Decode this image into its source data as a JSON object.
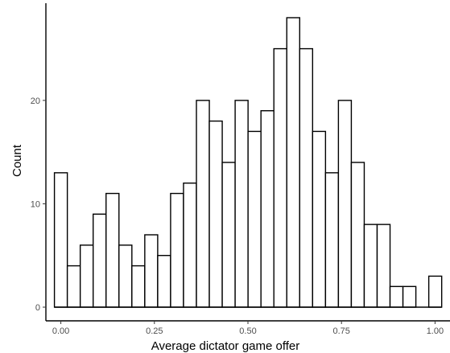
{
  "chart_data": {
    "type": "bar",
    "subtype": "histogram",
    "xlabel": "Average dictator game offer",
    "ylabel": "Count",
    "x_ticks": [
      "0.00",
      "0.25",
      "0.50",
      "0.75",
      "1.00"
    ],
    "x_tick_values": [
      0,
      0.25,
      0.5,
      0.75,
      1.0
    ],
    "y_ticks": [
      "0",
      "10",
      "20"
    ],
    "y_tick_values": [
      0,
      10,
      20
    ],
    "xlim": [
      -0.04,
      1.04
    ],
    "ylim": [
      0,
      29.4
    ],
    "bin_width": 0.0345,
    "bins_start": -0.0172,
    "values": [
      13,
      4,
      6,
      9,
      11,
      6,
      4,
      7,
      5,
      11,
      12,
      20,
      18,
      14,
      20,
      17,
      19,
      25,
      28,
      25,
      17,
      13,
      20,
      14,
      8,
      8,
      2,
      2,
      0,
      3
    ],
    "bar_fill": "#ffffff",
    "bar_stroke": "#000000",
    "grid": false,
    "legend": "none"
  }
}
